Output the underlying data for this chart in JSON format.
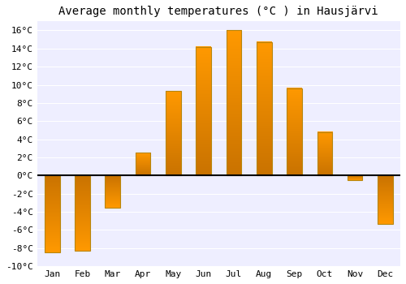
{
  "title": "Average monthly temperatures (°C ) in Hausjärvi",
  "months": [
    "Jan",
    "Feb",
    "Mar",
    "Apr",
    "May",
    "Jun",
    "Jul",
    "Aug",
    "Sep",
    "Oct",
    "Nov",
    "Dec"
  ],
  "values": [
    -8.5,
    -8.3,
    -3.5,
    2.5,
    9.3,
    14.2,
    16.0,
    14.7,
    9.6,
    4.8,
    -0.5,
    -5.3
  ],
  "bar_color_top": "#FFB700",
  "bar_color_bottom": "#FF8C00",
  "bar_edge_color": "#B8860B",
  "ylim": [
    -10,
    17
  ],
  "yticks": [
    -10,
    -8,
    -6,
    -4,
    -2,
    0,
    2,
    4,
    6,
    8,
    10,
    12,
    14,
    16
  ],
  "plot_bg_color": "#EEEEFF",
  "fig_bg_color": "#FFFFFF",
  "grid_color": "#FFFFFF",
  "title_fontsize": 10,
  "tick_fontsize": 8,
  "zero_line_color": "#000000",
  "bar_width": 0.5
}
